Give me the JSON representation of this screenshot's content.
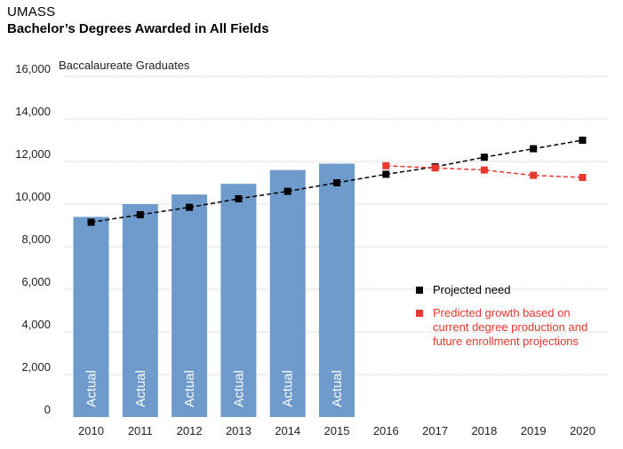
{
  "header": {
    "subtitle": "UMASS",
    "title": "Bachelor’s Degrees Awarded in All Fields"
  },
  "legend": {
    "projected_need": "Projected need",
    "predicted_growth": "Predicted growth based on current degree production and future enrollment projections"
  },
  "chart_data": {
    "type": "bar",
    "title": "Bachelor’s Degrees Awarded in All Fields",
    "ylabel": "Baccalaureate Graduates",
    "xlabel": "",
    "ylim": [
      0,
      16000
    ],
    "yticks": [
      0,
      2000,
      4000,
      6000,
      8000,
      10000,
      12000,
      14000,
      16000
    ],
    "ytick_labels": [
      "0",
      "2,000",
      "4,000",
      "6,000",
      "8,000",
      "10,000",
      "12,000",
      "14,000",
      "16,000"
    ],
    "categories": [
      "2010",
      "2011",
      "2012",
      "2013",
      "2014",
      "2015",
      "2016",
      "2017",
      "2018",
      "2019",
      "2020"
    ],
    "grid": true,
    "bar_label": "Actual",
    "colors": {
      "bar": "#6e9bcb",
      "need": "#000000",
      "predicted": "#e8382e",
      "grid": "#b5b5b5"
    },
    "series": [
      {
        "type": "bar",
        "x": [
          "2010",
          "2011",
          "2012",
          "2013",
          "2014",
          "2015"
        ],
        "values": [
          9400,
          10000,
          10450,
          10950,
          11600,
          11900
        ]
      },
      {
        "name": "Projected need",
        "type": "line",
        "style": "dashed",
        "x": [
          "2010",
          "2011",
          "2012",
          "2013",
          "2014",
          "2015",
          "2016",
          "2017",
          "2018",
          "2019",
          "2020"
        ],
        "values": [
          9150,
          9500,
          9850,
          10250,
          10600,
          11000,
          11400,
          11750,
          12200,
          12600,
          13000
        ]
      },
      {
        "name": "Predicted growth based on current degree production and future enrollment projections",
        "type": "line",
        "style": "dashed",
        "x": [
          "2016",
          "2017",
          "2018",
          "2019",
          "2020"
        ],
        "values": [
          11800,
          11700,
          11600,
          11350,
          11250
        ]
      }
    ]
  }
}
